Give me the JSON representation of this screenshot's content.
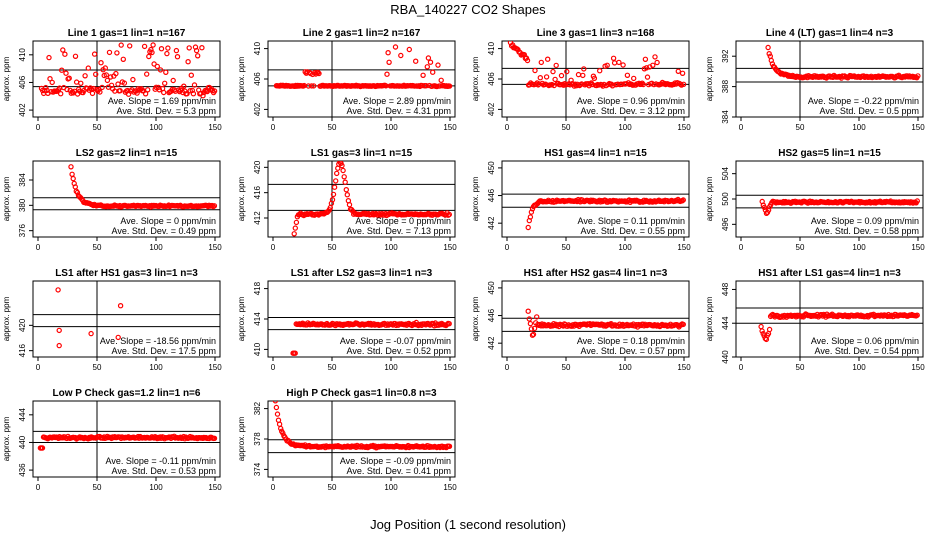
{
  "figure": {
    "title": "RBA_140227  CO2 Shapes",
    "xlabel": "Jog Position (1 second resolution)",
    "ylabel": "approx. ppm",
    "marker_color": "#ff0000",
    "x_ticks": [
      "0",
      "50",
      "100",
      "150"
    ]
  },
  "chart_data": [
    {
      "type": "scatter",
      "title": "Line 1 gas=1 lin=1 n=167",
      "ylabel": "approx. ppm",
      "xlim": [
        0,
        150
      ],
      "ylim": [
        401,
        412
      ],
      "yticks": [
        402,
        406,
        410
      ],
      "x_ticks": [
        0,
        50,
        100,
        150
      ],
      "vline": 50,
      "hlines": [
        405.4,
        407.8
      ],
      "slope": "Ave. Slope = 1.69 ppm/min",
      "stddev": "Ave. Std. Dev. = 5.3 ppm",
      "pattern": "noisy",
      "settle": 404.8,
      "noise": 0.8,
      "spike_frac": 0.35,
      "spike_lo": 405.5,
      "spike_hi": 411.5,
      "x_start": 3
    },
    {
      "type": "scatter",
      "title": "Line 2 gas=1 lin=2 n=167",
      "ylabel": "approx. ppm",
      "xlim": [
        0,
        150
      ],
      "ylim": [
        401,
        411
      ],
      "yticks": [
        402,
        406,
        410
      ],
      "x_ticks": [
        0,
        50,
        100,
        150
      ],
      "vline": 50,
      "hlines": [
        405.1,
        407.2
      ],
      "slope": "Ave. Slope = 2.89 ppm/min",
      "stddev": "Ave. Std. Dev. = 4.31 ppm",
      "pattern": "two-level",
      "settle": 405.1,
      "noise": 0.1,
      "spike_frac": 0.3,
      "spike_lo": 405.5,
      "spike_hi": 410.5,
      "x_start": 3
    },
    {
      "type": "scatter",
      "title": "Line 3 gas=1 lin=3 n=168",
      "ylabel": "approx. ppm",
      "xlim": [
        0,
        150
      ],
      "ylim": [
        401,
        411
      ],
      "yticks": [
        402,
        406,
        410
      ],
      "x_ticks": [
        0,
        50,
        100,
        150
      ],
      "vline": 50,
      "hlines": [
        405.3,
        407.4
      ],
      "slope": "Ave. Slope = 0.96 ppm/min",
      "stddev": "Ave. Std. Dev. = 3.12 ppm",
      "pattern": "drop-noisy",
      "start": 410.5,
      "settle": 405.3,
      "noise": 0.3,
      "spike_frac": 0.2,
      "spike_lo": 405.8,
      "spike_hi": 409,
      "x_start": 3
    },
    {
      "type": "scatter",
      "title": "Line 4 (LT) gas=1 lin=4 n=3",
      "ylabel": "approx. ppm",
      "xlim": [
        0,
        150
      ],
      "ylim": [
        384,
        394
      ],
      "yticks": [
        384,
        388,
        392
      ],
      "x_ticks": [
        0,
        50,
        100,
        150
      ],
      "vline": 50,
      "hlines": [
        388.6,
        390.4
      ],
      "slope": "Ave. Slope = -0.22 ppm/min",
      "stddev": "Ave. Std. Dev. = 0.5 ppm",
      "pattern": "decay",
      "start": 393,
      "settle": 389.3,
      "noise": 0.25,
      "x_start": 23
    },
    {
      "type": "scatter",
      "title": "LS2 gas=2 lin=1 n=15",
      "ylabel": "approx. ppm",
      "xlim": [
        0,
        150
      ],
      "ylim": [
        375,
        387
      ],
      "yticks": [
        376,
        380,
        384
      ],
      "x_ticks": [
        0,
        50,
        100,
        150
      ],
      "vline": null,
      "hlines": [
        379.3,
        381.2
      ],
      "slope": "Ave. Slope = 0 ppm/min",
      "stddev": "Ave. Std. Dev. = 0.49 ppm",
      "pattern": "decay",
      "start": 386,
      "settle": 379.9,
      "noise": 0.2,
      "x_start": 28
    },
    {
      "type": "scatter",
      "title": "LS1 gas=3 lin=1 n=15",
      "ylabel": "approx. ppm",
      "xlim": [
        0,
        150
      ],
      "ylim": [
        409,
        421
      ],
      "yticks": [
        412,
        416,
        420
      ],
      "x_ticks": [
        0,
        50,
        100,
        150
      ],
      "vline": 50,
      "hlines": [
        413.2,
        417.3
      ],
      "slope": "Ave. Slope = 0 ppm/min",
      "stddev": "Ave. Std. Dev. = 7.13 ppm",
      "pattern": "bump",
      "start": 409.5,
      "settle": 412.6,
      "noise": 0.25,
      "bump_center": 57,
      "bump_height": 420.8,
      "x_start": 18
    },
    {
      "type": "scatter",
      "title": "HS1 gas=4 lin=1 n=15",
      "ylabel": "approx. ppm",
      "xlim": [
        0,
        150
      ],
      "ylim": [
        440,
        451
      ],
      "yticks": [
        442,
        446,
        450
      ],
      "x_ticks": [
        0,
        50,
        100,
        150
      ],
      "vline": null,
      "hlines": [
        444.3,
        446.2
      ],
      "slope": "Ave. Slope = 0.11 ppm/min",
      "stddev": "Ave. Std. Dev. = 0.55 ppm",
      "pattern": "rise",
      "start": 441.2,
      "settle": 445.2,
      "noise": 0.25,
      "x_start": 18
    },
    {
      "type": "scatter",
      "title": "HS2 gas=5 lin=1 n=15",
      "ylabel": "approx. ppm",
      "xlim": [
        0,
        150
      ],
      "ylim": [
        494,
        506
      ],
      "yticks": [
        496,
        500,
        504
      ],
      "x_ticks": [
        0,
        50,
        100,
        150
      ],
      "vline": null,
      "hlines": [
        498.6,
        500.6
      ],
      "slope": "Ave. Slope = 0.09 ppm/min",
      "stddev": "Ave. Std. Dev. = 0.58 ppm",
      "pattern": "dip",
      "start": 499.5,
      "settle": 499.5,
      "noise": 0.25,
      "dip": 497.6,
      "x_start": 18
    },
    {
      "type": "scatter",
      "title": "LS1 after HS1 gas=3 lin=1 n=3",
      "ylabel": "approx. ppm",
      "xlim": [
        0,
        150
      ],
      "ylim": [
        415,
        427
      ],
      "yticks": [
        416,
        420
      ],
      "x_ticks": [
        0,
        50,
        100,
        150
      ],
      "vline": 50,
      "hlines": [
        419.8,
        421.7
      ],
      "slope": "Ave. Slope = -18.56 ppm/min",
      "stddev": "Ave. Std. Dev. = 17.5 ppm",
      "pattern": "sparse",
      "sparse": [
        [
          17,
          425.6
        ],
        [
          18,
          419.2
        ],
        [
          18,
          416.8
        ],
        [
          45,
          418.7
        ],
        [
          57,
          427.6
        ],
        [
          68,
          418.1
        ],
        [
          70,
          423.1
        ]
      ]
    },
    {
      "type": "scatter",
      "title": "LS1 after LS2 gas=3 lin=1 n=3",
      "ylabel": "approx. ppm",
      "xlim": [
        0,
        150
      ],
      "ylim": [
        409,
        419
      ],
      "yticks": [
        410,
        414,
        418
      ],
      "x_ticks": [
        0,
        50,
        100,
        150
      ],
      "vline": null,
      "hlines": [
        412.6,
        414.2
      ],
      "slope": "Ave. Slope = -0.07 ppm/min",
      "stddev": "Ave. Std. Dev. = 0.52 ppm",
      "pattern": "flat",
      "start": 409.5,
      "settle": 413.3,
      "noise": 0.25,
      "x_start": 17
    },
    {
      "type": "scatter",
      "title": "HS1 after HS2 gas=4 lin=1 n=3",
      "ylabel": "approx. ppm",
      "xlim": [
        0,
        150
      ],
      "ylim": [
        440,
        451
      ],
      "yticks": [
        442,
        446,
        450
      ],
      "x_ticks": [
        0,
        50,
        100,
        150
      ],
      "vline": null,
      "hlines": [
        443.7,
        445.6
      ],
      "slope": "Ave. Slope = 0.18 ppm/min",
      "stddev": "Ave. Std. Dev. = 0.57 ppm",
      "pattern": "dip",
      "start": 446.5,
      "settle": 444.6,
      "noise": 0.3,
      "dip": 442.8,
      "x_start": 18
    },
    {
      "type": "scatter",
      "title": "HS1 after LS1 gas=4 lin=1 n=3",
      "ylabel": "approx. ppm",
      "xlim": [
        0,
        150
      ],
      "ylim": [
        440,
        449
      ],
      "yticks": [
        440,
        444,
        448
      ],
      "x_ticks": [
        0,
        50,
        100,
        150
      ],
      "vline": 50,
      "hlines": [
        444.0,
        445.8
      ],
      "slope": "Ave. Slope = 0.06 ppm/min",
      "stddev": "Ave. Std. Dev. = 0.54 ppm",
      "pattern": "dip",
      "start": 443.5,
      "settle": 444.9,
      "noise": 0.25,
      "dip": 441.9,
      "x_start": 17
    },
    {
      "type": "scatter",
      "title": "Low P Check gas=1.2 lin=1 n=6",
      "ylabel": "approx. ppm",
      "xlim": [
        0,
        150
      ],
      "ylim": [
        435,
        446
      ],
      "yticks": [
        436,
        440,
        444
      ],
      "x_ticks": [
        0,
        50,
        100,
        150
      ],
      "vline": 50,
      "hlines": [
        440.0,
        441.6
      ],
      "slope": "Ave. Slope = -0.11 ppm/min",
      "stddev": "Ave. Std. Dev. = 0.53 ppm",
      "pattern": "flat",
      "start": 439.2,
      "settle": 440.7,
      "noise": 0.25,
      "x_start": 2
    },
    {
      "type": "scatter",
      "title": "High P Check gas=1 lin=0.8 n=3",
      "ylabel": "approx. ppm",
      "xlim": [
        0,
        150
      ],
      "ylim": [
        373,
        383
      ],
      "yticks": [
        374,
        378,
        382
      ],
      "x_ticks": [
        0,
        50,
        100,
        150
      ],
      "vline": 50,
      "hlines": [
        376.2,
        377.9
      ],
      "slope": "Ave. Slope = -0.09 ppm/min",
      "stddev": "Ave. Std. Dev. = 0.41 ppm",
      "pattern": "decay",
      "start": 383,
      "settle": 377.0,
      "noise": 0.2,
      "x_start": 2
    }
  ]
}
